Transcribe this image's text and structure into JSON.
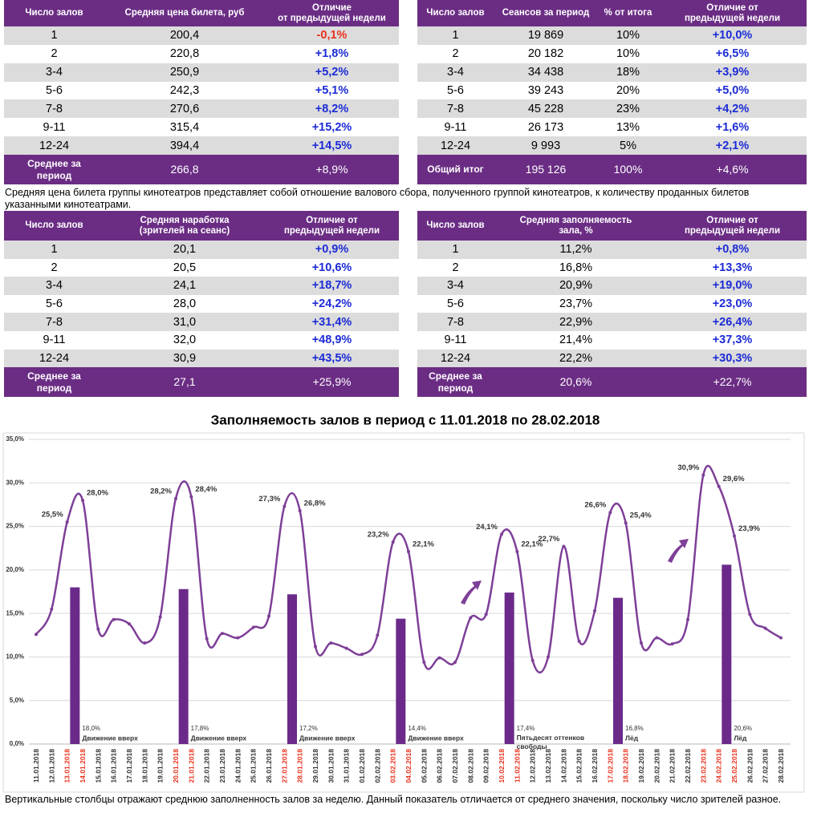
{
  "tables": [
    {
      "columns": [
        "Число залов",
        "Средняя цена билета, руб",
        "Отличие\nот предыдущей недели"
      ],
      "rows": [
        [
          "1",
          "200,4",
          "-0,1%"
        ],
        [
          "2",
          "220,8",
          "+1,8%"
        ],
        [
          "3-4",
          "250,9",
          "+5,2%"
        ],
        [
          "5-6",
          "242,3",
          "+5,1%"
        ],
        [
          "7-8",
          "270,6",
          "+8,2%"
        ],
        [
          "9-11",
          "315,4",
          "+15,2%"
        ],
        [
          "12-24",
          "394,4",
          "+14,5%"
        ]
      ],
      "footer": [
        "Среднее за\nпериод",
        "266,8",
        "+8,9%"
      ]
    },
    {
      "columns": [
        "Число залов",
        "Сеансов за период",
        "% от итога",
        "Отличие от\nпредыдущей недели"
      ],
      "rows": [
        [
          "1",
          "19 869",
          "10%",
          "+10,0%"
        ],
        [
          "2",
          "20 182",
          "10%",
          "+6,5%"
        ],
        [
          "3-4",
          "34 438",
          "18%",
          "+3,9%"
        ],
        [
          "5-6",
          "39 243",
          "20%",
          "+5,0%"
        ],
        [
          "7-8",
          "45 228",
          "23%",
          "+4,2%"
        ],
        [
          "9-11",
          "26 173",
          "13%",
          "+1,6%"
        ],
        [
          "12-24",
          "9 993",
          "5%",
          "+2,1%"
        ]
      ],
      "footer": [
        "Общий итог",
        "195 126",
        "100%",
        "+4,6%"
      ]
    },
    {
      "columns": [
        "Число залов",
        "Средняя наработка\n(зрителей на сеанс)",
        "Отличие от\nпредыдущей недели"
      ],
      "rows": [
        [
          "1",
          "20,1",
          "+0,9%"
        ],
        [
          "2",
          "20,5",
          "+10,6%"
        ],
        [
          "3-4",
          "24,1",
          "+18,7%"
        ],
        [
          "5-6",
          "28,0",
          "+24,2%"
        ],
        [
          "7-8",
          "31,0",
          "+31,4%"
        ],
        [
          "9-11",
          "32,0",
          "+48,9%"
        ],
        [
          "12-24",
          "30,9",
          "+43,5%"
        ]
      ],
      "footer": [
        "Среднее за\nпериод",
        "27,1",
        "+25,9%"
      ]
    },
    {
      "columns": [
        "Число залов",
        "Средняя заполняемость\nзала, %",
        "Отличие от\nпредыдущей недели"
      ],
      "rows": [
        [
          "1",
          "11,2%",
          "+0,8%"
        ],
        [
          "2",
          "16,8%",
          "+13,3%"
        ],
        [
          "3-4",
          "20,9%",
          "+19,0%"
        ],
        [
          "5-6",
          "23,7%",
          "+23,0%"
        ],
        [
          "7-8",
          "22,9%",
          "+26,4%"
        ],
        [
          "9-11",
          "21,4%",
          "+37,3%"
        ],
        [
          "12-24",
          "22,2%",
          "+30,3%"
        ]
      ],
      "footer": [
        "Среднее за\nпериод",
        "20,6%",
        "+22,7%"
      ]
    }
  ],
  "note": "Средняя цена билета группы кинотеатров представляет собой отношение валового сбора, полученного группой кинотеатров, к количеству проданных билетов указанными кинотеатрами.",
  "chart_data": {
    "type": "line",
    "title": "Заполняемость залов в период с 11.01.2018 по 28.02.2018",
    "categories": [
      "11.01.2018",
      "12.01.2018",
      "13.01.2018",
      "14.01.2018",
      "15.01.2018",
      "16.01.2018",
      "17.01.2018",
      "18.01.2018",
      "19.01.2018",
      "20.01.2018",
      "21.01.2018",
      "22.01.2018",
      "23.01.2018",
      "24.01.2018",
      "25.01.2018",
      "26.01.2018",
      "27.01.2018",
      "28.01.2018",
      "29.01.2018",
      "30.01.2018",
      "31.01.2018",
      "01.02.2018",
      "02.02.2018",
      "03.02.2018",
      "04.02.2018",
      "05.02.2018",
      "06.02.2018",
      "07.02.2018",
      "08.02.2018",
      "09.02.2018",
      "10.02.2018",
      "11.02.2018",
      "12.02.2018",
      "13.02.2018",
      "14.02.2018",
      "15.02.2018",
      "16.02.2018",
      "17.02.2018",
      "18.02.2018",
      "19.02.2018",
      "20.02.2018",
      "21.02.2018",
      "22.02.2018",
      "23.02.2018",
      "24.02.2018",
      "25.02.2018",
      "26.02.2018",
      "27.02.2018",
      "28.02.2018"
    ],
    "highlighted": [
      false,
      false,
      true,
      true,
      false,
      false,
      false,
      false,
      false,
      true,
      true,
      false,
      false,
      false,
      false,
      false,
      true,
      true,
      false,
      false,
      false,
      false,
      false,
      true,
      true,
      false,
      false,
      false,
      false,
      false,
      true,
      true,
      false,
      false,
      false,
      false,
      false,
      true,
      true,
      false,
      false,
      false,
      false,
      true,
      true,
      true,
      false,
      false,
      false
    ],
    "highlight_color": "#e8321e",
    "series": [
      {
        "type": "line",
        "color": "#7e3f98",
        "values": [
          12.6,
          15.5,
          25.5,
          28.0,
          13.2,
          14.3,
          13.8,
          11.6,
          14.6,
          28.2,
          28.4,
          12.1,
          12.7,
          12.2,
          13.4,
          14.7,
          27.3,
          26.8,
          11.2,
          11.6,
          11.0,
          10.3,
          12.5,
          23.2,
          22.1,
          9.4,
          9.9,
          9.4,
          14.5,
          14.9,
          24.1,
          22.1,
          9.6,
          10.0,
          22.7,
          11.8,
          15.3,
          26.6,
          25.4,
          11.6,
          12.2,
          11.5,
          14.3,
          30.9,
          29.6,
          23.9,
          14.9,
          13.3,
          12.2
        ],
        "value_labels": [
          null,
          null,
          "25,5%",
          "28,0%",
          null,
          null,
          null,
          null,
          null,
          "28,2%",
          "28,4%",
          null,
          null,
          null,
          null,
          null,
          "27,3%",
          "26,8%",
          null,
          null,
          null,
          null,
          null,
          "23,2%",
          "22,1%",
          null,
          null,
          null,
          null,
          null,
          "24,1%",
          "22,1%",
          null,
          null,
          "22,7%",
          null,
          null,
          "26,6%",
          "25,4%",
          null,
          null,
          null,
          null,
          "30,9%",
          "29,6%",
          "23,9%",
          null,
          null,
          null
        ]
      },
      {
        "type": "bar",
        "color": "#6b2a8a",
        "values": [
          null,
          null,
          null,
          18.0,
          null,
          null,
          null,
          null,
          null,
          null,
          17.8,
          null,
          null,
          null,
          null,
          null,
          null,
          17.2,
          null,
          null,
          null,
          null,
          null,
          null,
          14.4,
          null,
          null,
          null,
          null,
          null,
          null,
          17.4,
          null,
          null,
          null,
          null,
          null,
          null,
          16.8,
          null,
          null,
          null,
          null,
          null,
          null,
          20.6,
          null,
          null,
          null
        ],
        "value_labels": [
          null,
          null,
          null,
          "18,0%",
          null,
          null,
          null,
          null,
          null,
          null,
          "17,8%",
          null,
          null,
          null,
          null,
          null,
          null,
          "17,2%",
          null,
          null,
          null,
          null,
          null,
          null,
          "14,4%",
          null,
          null,
          null,
          null,
          null,
          null,
          "17,4%",
          null,
          null,
          null,
          null,
          null,
          null,
          "16,8%",
          null,
          null,
          null,
          null,
          null,
          null,
          "20,6%",
          null,
          null,
          null
        ],
        "notes": [
          null,
          null,
          null,
          "Движение вверх",
          null,
          null,
          null,
          null,
          null,
          null,
          "Движение вверх",
          null,
          null,
          null,
          null,
          null,
          null,
          "Движение вверх",
          null,
          null,
          null,
          null,
          null,
          null,
          "Движение вверх",
          null,
          null,
          null,
          null,
          null,
          null,
          "Пятьдесят оттенков\nсвободы",
          null,
          null,
          null,
          null,
          null,
          null,
          "Лёд",
          null,
          null,
          null,
          null,
          null,
          null,
          "Лёд",
          null,
          null,
          null
        ]
      }
    ],
    "ylim": [
      0,
      35
    ],
    "yticks": [
      {
        "value": 0,
        "label": "0,0%"
      },
      {
        "value": 5,
        "label": "5,0%"
      },
      {
        "value": 10,
        "label": "10,0%"
      },
      {
        "value": 15,
        "label": "15,0%"
      },
      {
        "value": 20,
        "label": "20,0%"
      },
      {
        "value": 25,
        "label": "25,0%"
      },
      {
        "value": 30,
        "label": "30,0%"
      },
      {
        "value": 35,
        "label": "35,0%"
      }
    ],
    "grid": true
  },
  "footer_note": "Вертикальные столбцы отражают среднюю заполненность залов за неделю. Данный показатель отличается от среднего значения, поскольку число зрителей разное."
}
